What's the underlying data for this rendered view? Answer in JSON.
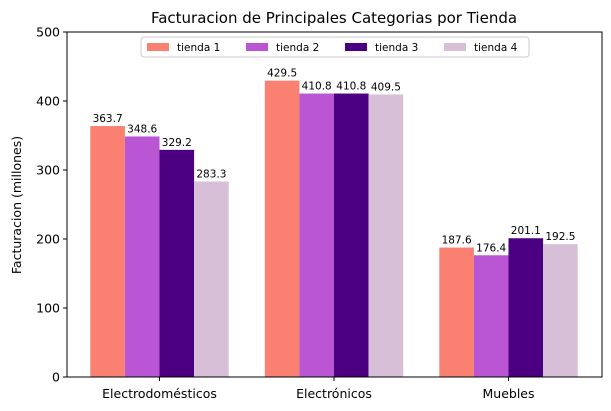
{
  "chart_data": {
    "type": "bar",
    "title": "Facturacion de Principales Categorias por Tienda",
    "xlabel": "",
    "ylabel": "Facturacion (millones)",
    "ylim": [
      0,
      500
    ],
    "yticks": [
      0,
      100,
      200,
      300,
      400,
      500
    ],
    "categories": [
      "Electrodomésticos",
      "Electrónicos",
      "Muebles"
    ],
    "series": [
      {
        "name": "tienda 1",
        "color": "#fa8072",
        "values": [
          363.7,
          429.5,
          187.6
        ]
      },
      {
        "name": "tienda 2",
        "color": "#ba55d3",
        "values": [
          348.6,
          410.8,
          176.4
        ]
      },
      {
        "name": "tienda 3",
        "color": "#4b0082",
        "values": [
          329.2,
          410.8,
          201.1
        ]
      },
      {
        "name": "tienda 4",
        "color": "#d8bfd8",
        "values": [
          283.3,
          409.5,
          192.5
        ]
      }
    ],
    "legend_position": "top-center",
    "grid": false
  }
}
